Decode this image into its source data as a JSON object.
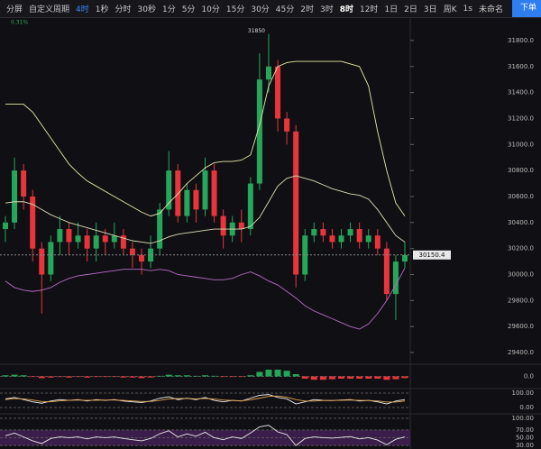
{
  "toolbar": {
    "items": [
      "分屏",
      "自定义周期",
      "4时",
      "1秒",
      "分时",
      "30秒",
      "1分",
      "5分",
      "10分",
      "15分",
      "30分",
      "45分",
      "2时",
      "3时",
      "8时",
      "12时",
      "1日",
      "2日",
      "3日",
      "周K"
    ],
    "right": [
      "1s",
      "未命名",
      "下单"
    ]
  },
  "chart_data": [
    {
      "type": "candlestick",
      "subtitle": "0.31%",
      "open": [
        30350,
        30400,
        30800,
        30600,
        30200,
        30000,
        30250,
        30350,
        30250,
        30300,
        30200,
        30300,
        30250,
        30300,
        30200,
        30150,
        30100,
        30200,
        30500,
        30800,
        30450,
        30650,
        30500,
        30800,
        30450,
        30300,
        30400,
        30350,
        30700,
        31500,
        31600,
        31200,
        31100,
        30000,
        30300,
        30350,
        30300,
        30250,
        30300,
        30350,
        30250,
        30300,
        30200,
        29850,
        30100
      ],
      "high": [
        30450,
        30900,
        30850,
        30650,
        30250,
        30300,
        30450,
        30400,
        30400,
        30350,
        30400,
        30350,
        30400,
        30350,
        30250,
        30200,
        30300,
        30550,
        30950,
        30850,
        30700,
        30700,
        30900,
        30850,
        30500,
        30450,
        30500,
        30750,
        31700,
        31850,
        31650,
        31250,
        31150,
        30350,
        30400,
        30400,
        30350,
        30350,
        30400,
        30400,
        30350,
        30350,
        30250,
        30150,
        30250
      ],
      "low": [
        30250,
        30350,
        30500,
        30100,
        29700,
        29950,
        30150,
        30150,
        30200,
        30100,
        30100,
        30150,
        30200,
        30150,
        30050,
        30000,
        30050,
        30150,
        30450,
        30400,
        30400,
        30400,
        30450,
        30400,
        30200,
        30250,
        30250,
        30300,
        30650,
        31400,
        31100,
        31000,
        29900,
        29950,
        30250,
        30250,
        30200,
        30200,
        30250,
        30200,
        30200,
        30150,
        29800,
        29650,
        30050
      ],
      "close": [
        30400,
        30800,
        30600,
        30200,
        30000,
        30250,
        30350,
        30250,
        30300,
        30200,
        30300,
        30250,
        30300,
        30200,
        30150,
        30100,
        30200,
        30500,
        30800,
        30450,
        30650,
        30500,
        30800,
        30450,
        30300,
        30400,
        30350,
        30700,
        31500,
        31600,
        31200,
        31100,
        30000,
        30300,
        30350,
        30300,
        30250,
        30300,
        30350,
        30250,
        30300,
        30200,
        29850,
        30100,
        30150
      ],
      "up_color": "#26a65b",
      "down_color": "#e8353b",
      "series": [
        {
          "color": "#e6e6a8",
          "values": [
            31310,
            31310,
            31310,
            31250,
            31150,
            31050,
            30950,
            30850,
            30780,
            30720,
            30680,
            30640,
            30600,
            30560,
            30520,
            30480,
            30450,
            30470,
            30550,
            30620,
            30700,
            30760,
            30820,
            30860,
            30870,
            30870,
            30880,
            30920,
            31150,
            31450,
            31600,
            31630,
            31640,
            31640,
            31640,
            31640,
            31640,
            31640,
            31620,
            31600,
            31450,
            31100,
            30800,
            30550,
            30450
          ]
        },
        {
          "color": "#dcdcb8",
          "values": [
            30550,
            30560,
            30560,
            30540,
            30500,
            30460,
            30430,
            30400,
            30380,
            30360,
            30340,
            30320,
            30300,
            30280,
            30260,
            30250,
            30240,
            30260,
            30290,
            30310,
            30320,
            30330,
            30340,
            30350,
            30350,
            30350,
            30350,
            30370,
            30440,
            30560,
            30680,
            30740,
            30760,
            30740,
            30720,
            30690,
            30660,
            30640,
            30620,
            30610,
            30580,
            30500,
            30400,
            30300,
            30250
          ]
        },
        {
          "color": "#b66cc4",
          "values": [
            29950,
            29900,
            29880,
            29870,
            29880,
            29900,
            29940,
            29970,
            29990,
            30000,
            30010,
            30020,
            30030,
            30040,
            30040,
            30040,
            30030,
            30040,
            30030,
            30000,
            29990,
            29980,
            29970,
            29960,
            29960,
            29970,
            30000,
            30020,
            29990,
            29950,
            29920,
            29870,
            29820,
            29760,
            29720,
            29690,
            29660,
            29630,
            29600,
            29580,
            29620,
            29700,
            29800,
            29920,
            30050
          ]
        }
      ],
      "last_price": {
        "value": 30150.4,
        "label": "30150.4"
      },
      "ylim": [
        29303,
        31973
      ],
      "yticks": [
        {
          "value": 29400,
          "label": "29400.0"
        },
        {
          "value": 29600,
          "label": "29600.0"
        },
        {
          "value": 29800,
          "label": "29800.0"
        },
        {
          "value": 30000,
          "label": "30000.0"
        },
        {
          "value": 30200,
          "label": "30200.0"
        },
        {
          "value": 30400,
          "label": "30400.0"
        },
        {
          "value": 30600,
          "label": "30600.0"
        },
        {
          "value": 30800,
          "label": "30800.0"
        },
        {
          "value": 31000,
          "label": "31000.0"
        },
        {
          "value": 31200,
          "label": "31200.0"
        },
        {
          "value": 31400,
          "label": "31400.0"
        },
        {
          "value": 31600,
          "label": "31600.0"
        },
        {
          "value": 31800,
          "label": "31800.0"
        }
      ]
    },
    {
      "type": "bar",
      "up_color": "#26a65b",
      "down_color": "#e8353b",
      "values": [
        2,
        3,
        2,
        -1,
        -3,
        -2,
        -1,
        -2,
        -1,
        -2,
        -1,
        -1,
        -1,
        -2,
        -2,
        -3,
        -2,
        1,
        3,
        2,
        2,
        1,
        2,
        1,
        -1,
        -1,
        -1,
        2,
        8,
        12,
        12,
        10,
        4,
        -4,
        -6,
        -6,
        -5,
        -4,
        -4,
        -4,
        -4,
        -4,
        -6,
        -5,
        -3
      ],
      "ylim": [
        -20,
        20
      ],
      "yticks": [
        {
          "value": 0,
          "label": "0.0"
        }
      ]
    },
    {
      "type": "line",
      "series": [
        {
          "color": "#f0f0f0",
          "values": [
            60,
            70,
            55,
            40,
            30,
            45,
            55,
            50,
            55,
            45,
            55,
            50,
            55,
            45,
            40,
            35,
            45,
            65,
            75,
            55,
            65,
            55,
            70,
            50,
            40,
            50,
            45,
            65,
            85,
            90,
            70,
            60,
            25,
            40,
            55,
            50,
            48,
            52,
            55,
            45,
            50,
            40,
            25,
            45,
            55
          ]
        },
        {
          "color": "#e0a050",
          "values": [
            55,
            62,
            60,
            52,
            42,
            40,
            47,
            50,
            52,
            50,
            51,
            52,
            52,
            50,
            46,
            42,
            42,
            50,
            60,
            62,
            63,
            60,
            63,
            59,
            52,
            49,
            47,
            54,
            65,
            77,
            80,
            72,
            55,
            45,
            45,
            48,
            49,
            50,
            52,
            50,
            49,
            46,
            38,
            38,
            45
          ]
        }
      ],
      "ylim": [
        -37,
        125
      ],
      "yticks": [
        {
          "value": 0,
          "label": "0.00"
        },
        {
          "value": 100,
          "label": "100.00"
        }
      ]
    },
    {
      "type": "line",
      "band_color": "#3a1d4a",
      "series": [
        {
          "color": "#e8e8e8",
          "values": [
            55,
            62,
            52,
            42,
            35,
            48,
            52,
            50,
            52,
            47,
            52,
            50,
            52,
            48,
            45,
            42,
            48,
            60,
            68,
            52,
            60,
            54,
            64,
            50,
            45,
            52,
            48,
            62,
            78,
            82,
            65,
            58,
            30,
            48,
            52,
            50,
            49,
            51,
            53,
            47,
            50,
            44,
            32,
            46,
            52
          ]
        }
      ],
      "ylim": [
        21,
        109
      ],
      "yticks": [
        {
          "value": 30,
          "label": "30.00"
        },
        {
          "value": 50,
          "label": "50.00"
        },
        {
          "value": 70,
          "label": "70.00"
        },
        {
          "value": 100,
          "label": "100.00"
        }
      ]
    }
  ]
}
